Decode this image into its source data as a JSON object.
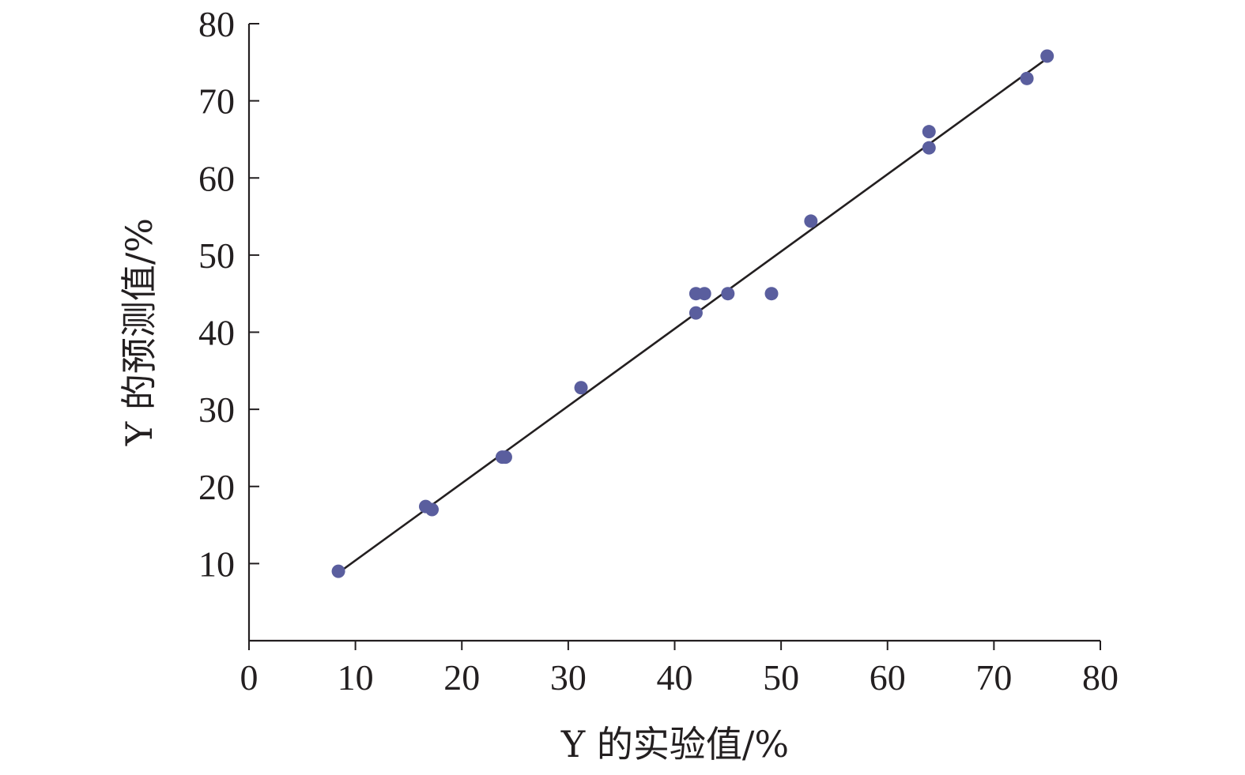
{
  "chart_data": {
    "type": "scatter",
    "title": "",
    "xlabel": "Y 的实验值/%",
    "ylabel": "Y 的预测值/%",
    "xlim": [
      0,
      80
    ],
    "ylim": [
      0,
      80
    ],
    "x_ticks": [
      0,
      10,
      20,
      30,
      40,
      50,
      60,
      70,
      80
    ],
    "y_ticks": [
      10,
      20,
      30,
      40,
      50,
      60,
      70,
      80
    ],
    "grid": false,
    "legend": "none",
    "point_color": "#5a5e9e",
    "line_color": "#231f20",
    "series": [
      {
        "x": [
          8.4,
          16.6,
          17.2,
          23.8,
          24.1,
          31.2,
          42.0,
          42.0,
          42.8,
          45.0,
          49.1,
          52.8,
          63.9,
          63.9,
          73.1,
          75.0
        ],
        "y": [
          9.0,
          17.4,
          17.0,
          23.8,
          23.8,
          32.8,
          45.0,
          42.5,
          45.0,
          45.0,
          45.0,
          54.4,
          66.0,
          63.9,
          72.9,
          75.8
        ]
      }
    ],
    "fit_line": {
      "x": [
        8.4,
        75.0
      ],
      "y": [
        8.8,
        75.5
      ]
    }
  }
}
